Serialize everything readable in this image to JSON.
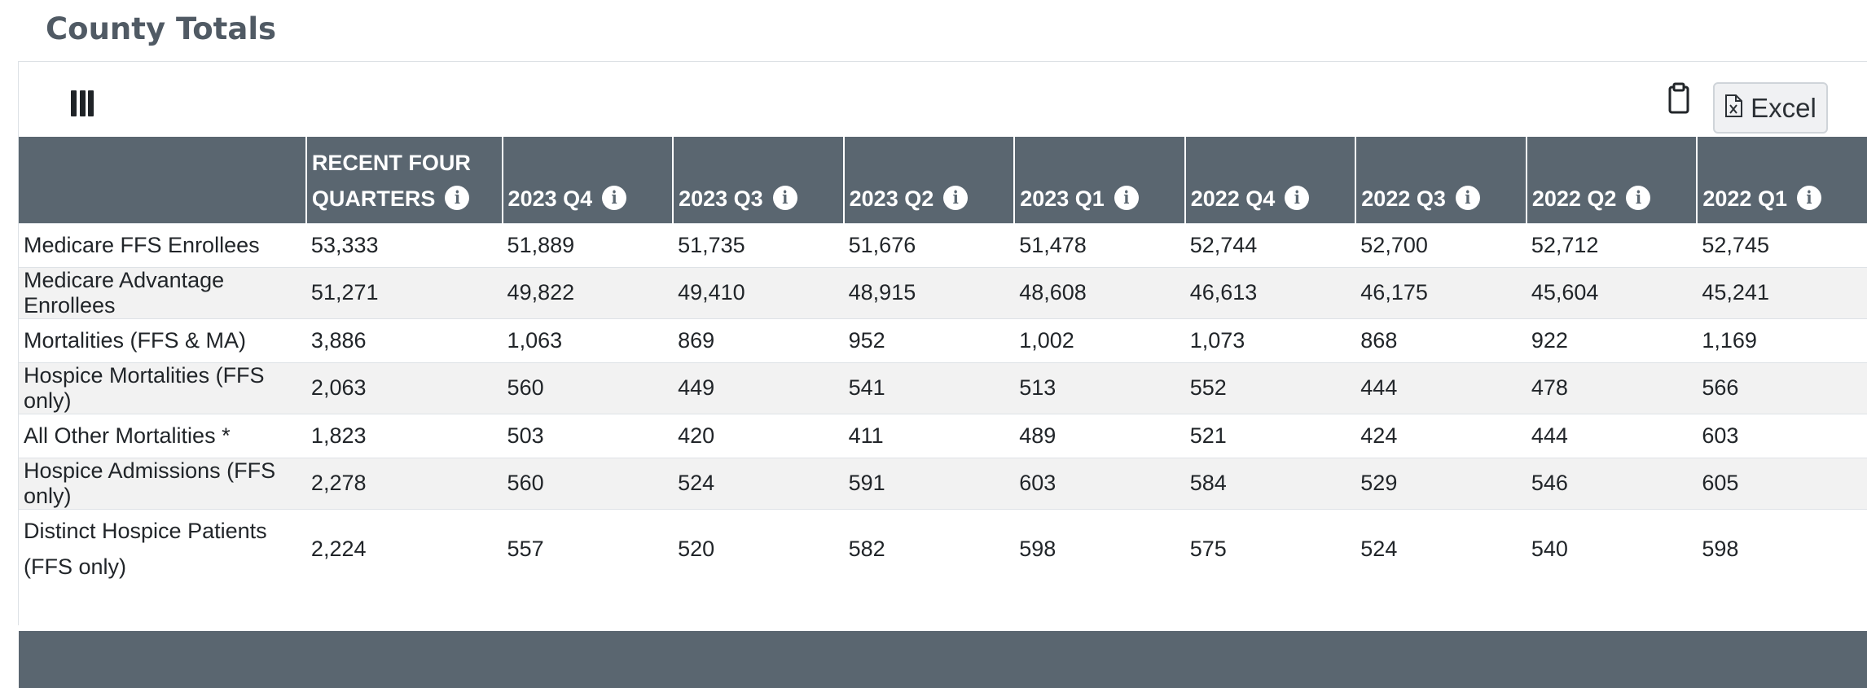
{
  "page": {
    "section_title": "County Totals"
  },
  "toolbar": {
    "columns_icon": "column-visibility-icon",
    "copy_icon": "clipboard-icon",
    "excel_icon": "file-excel-icon",
    "excel_label": "Excel"
  },
  "table": {
    "headers": [
      "",
      "RECENT FOUR QUARTERS",
      "2023 Q4",
      "2023 Q3",
      "2023 Q2",
      "2023 Q1",
      "2022 Q4",
      "2022 Q3",
      "2022 Q2",
      "2022 Q1"
    ],
    "info_icon_glyph": "i",
    "rows": [
      [
        "Medicare FFS Enrollees",
        "53,333",
        "51,889",
        "51,735",
        "51,676",
        "51,478",
        "52,744",
        "52,700",
        "52,712",
        "52,745"
      ],
      [
        "Medicare Advantage Enrollees",
        "51,271",
        "49,822",
        "49,410",
        "48,915",
        "48,608",
        "46,613",
        "46,175",
        "45,604",
        "45,241"
      ],
      [
        "Mortalities (FFS & MA)",
        "3,886",
        "1,063",
        "869",
        "952",
        "1,002",
        "1,073",
        "868",
        "922",
        "1,169"
      ],
      [
        "Hospice Mortalities (FFS only)",
        "2,063",
        "560",
        "449",
        "541",
        "513",
        "552",
        "444",
        "478",
        "566"
      ],
      [
        "All Other Mortalities *",
        "1,823",
        "503",
        "420",
        "411",
        "489",
        "521",
        "424",
        "444",
        "603"
      ],
      [
        "Hospice Admissions (FFS only)",
        "2,278",
        "560",
        "524",
        "591",
        "603",
        "584",
        "529",
        "546",
        "605"
      ],
      [
        "Distinct Hospice Patients (FFS only)",
        "2,224",
        "557",
        "520",
        "582",
        "598",
        "575",
        "524",
        "540",
        "598"
      ]
    ]
  },
  "colors": {
    "header_bg": "#5a6670",
    "title": "#505a64",
    "stripe": "#f2f2f2"
  }
}
